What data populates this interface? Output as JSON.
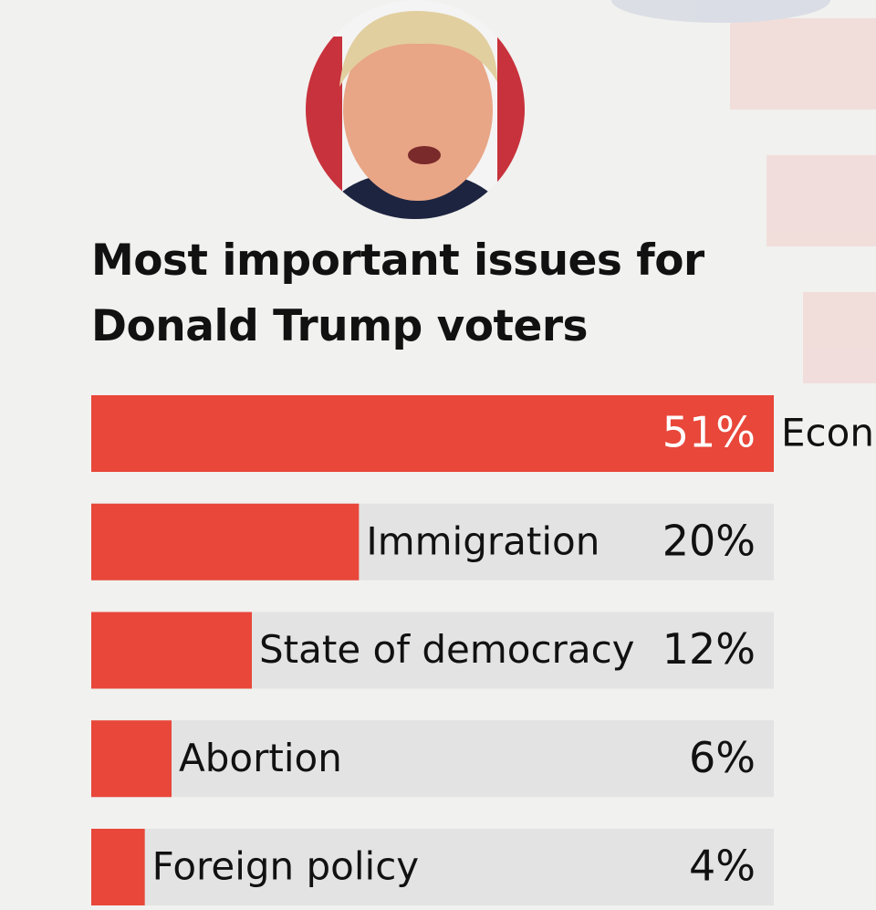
{
  "chart_data": {
    "type": "bar",
    "title": "Most important issues for Donald Trump voters",
    "categories": [
      "Economy",
      "Immigration",
      "State of democracy",
      "Abortion",
      "Foreign policy"
    ],
    "values": [
      51,
      20,
      12,
      6,
      4
    ],
    "value_labels": [
      "51%",
      "20%",
      "12%",
      "6%",
      "4%"
    ],
    "xlim": [
      0,
      51
    ],
    "color": "#e8473a"
  }
}
